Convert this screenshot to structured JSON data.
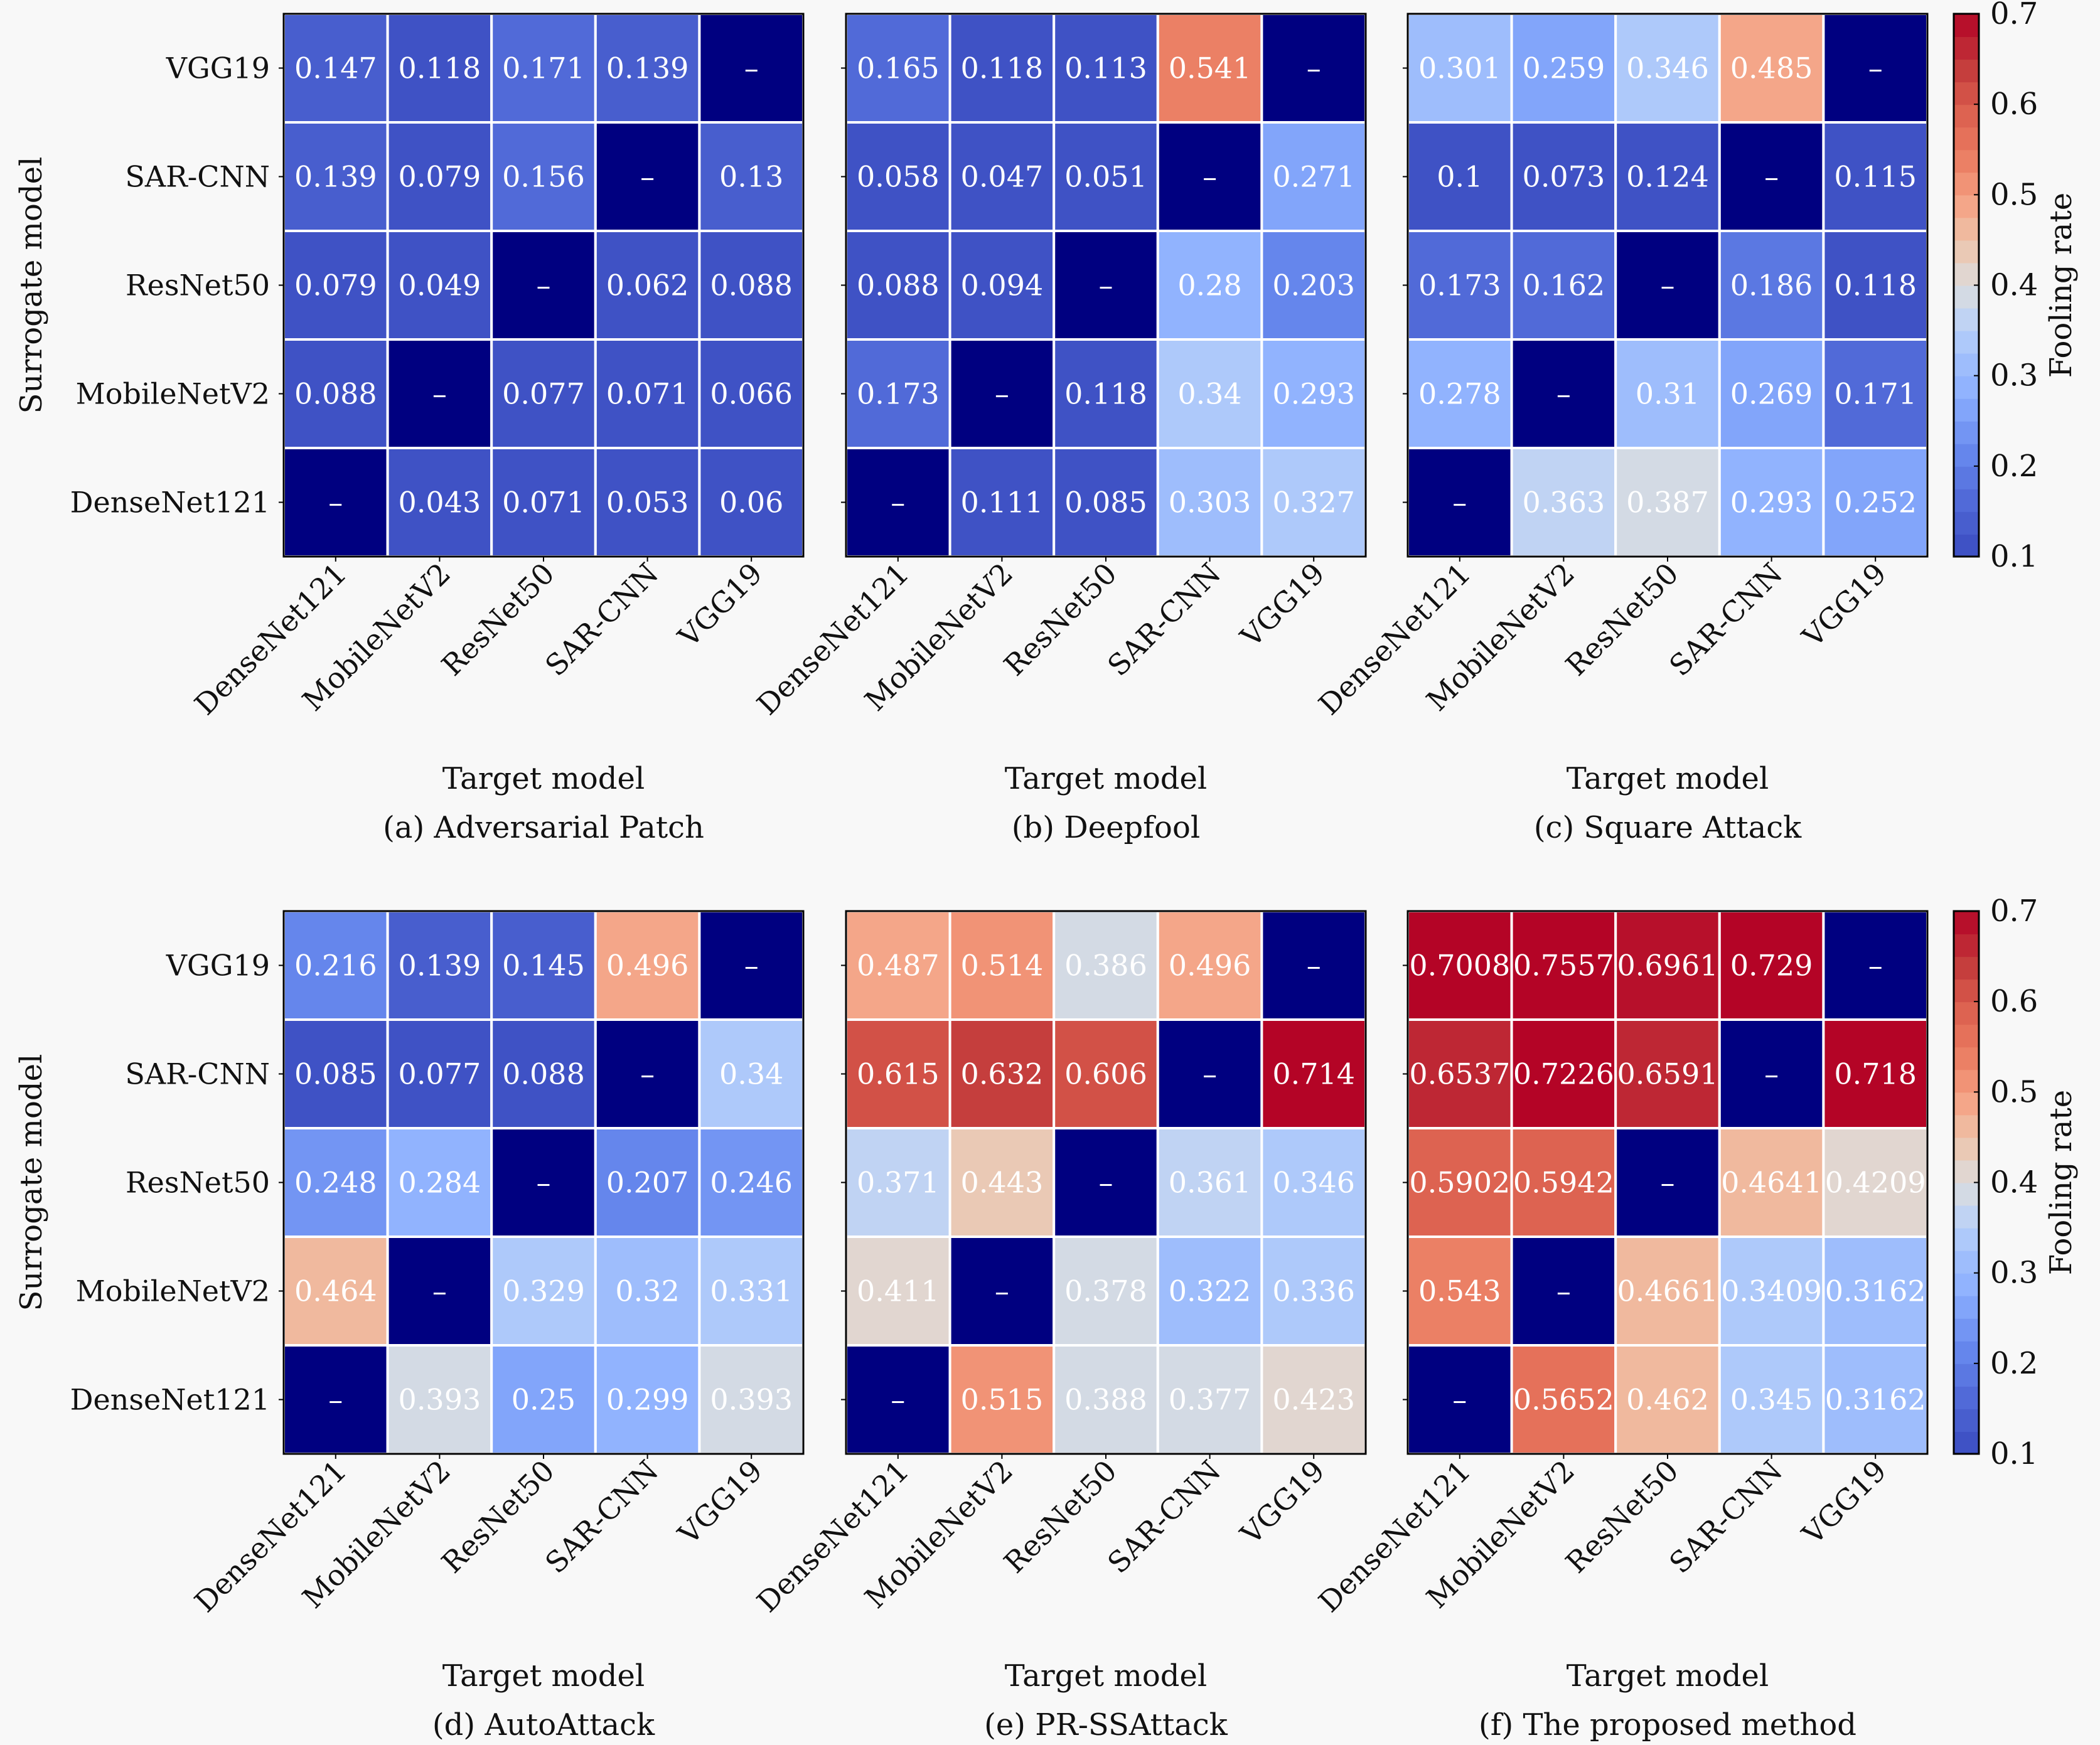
{
  "figure": {
    "missing_marker": "–",
    "colorbar_label": "Fooling rate",
    "colorbar_ticks": [
      "0.1",
      "0.2",
      "0.3",
      "0.4",
      "0.5",
      "0.6",
      "0.7"
    ]
  },
  "chart_data": [
    {
      "type": "heatmap",
      "caption": "(a) Adversarial Patch",
      "xlabel": "Target model",
      "ylabel": "Surrogate model",
      "x_categories": [
        "DenseNet121",
        "MobileNetV2",
        "ResNet50",
        "SAR-CNN",
        "VGG19"
      ],
      "y_categories": [
        "VGG19",
        "SAR-CNN",
        "ResNet50",
        "MobileNetV2",
        "DenseNet121"
      ],
      "values": [
        [
          "0.147",
          "0.118",
          "0.171",
          "0.139",
          null
        ],
        [
          "0.139",
          "0.079",
          "0.156",
          null,
          "0.13"
        ],
        [
          "0.079",
          "0.049",
          null,
          "0.062",
          "0.088"
        ],
        [
          "0.088",
          null,
          "0.077",
          "0.071",
          "0.066"
        ],
        [
          null,
          "0.043",
          "0.071",
          "0.053",
          "0.06"
        ]
      ],
      "colorbar": {
        "label": "Fooling rate",
        "range": [
          0.1,
          0.7
        ],
        "cmap": "coolwarm"
      }
    },
    {
      "type": "heatmap",
      "caption": "(b) Deepfool",
      "xlabel": "Target model",
      "ylabel": "",
      "x_categories": [
        "DenseNet121",
        "MobileNetV2",
        "ResNet50",
        "SAR-CNN",
        "VGG19"
      ],
      "y_categories": [
        "VGG19",
        "SAR-CNN",
        "ResNet50",
        "MobileNetV2",
        "DenseNet121"
      ],
      "values": [
        [
          "0.165",
          "0.118",
          "0.113",
          "0.541",
          null
        ],
        [
          "0.058",
          "0.047",
          "0.051",
          null,
          "0.271"
        ],
        [
          "0.088",
          "0.094",
          null,
          "0.28",
          "0.203"
        ],
        [
          "0.173",
          null,
          "0.118",
          "0.34",
          "0.293"
        ],
        [
          null,
          "0.111",
          "0.085",
          "0.303",
          "0.327"
        ]
      ],
      "colorbar": {
        "label": "Fooling rate",
        "range": [
          0.1,
          0.7
        ],
        "cmap": "coolwarm"
      }
    },
    {
      "type": "heatmap",
      "caption": "(c) Square Attack",
      "xlabel": "Target model",
      "ylabel": "",
      "x_categories": [
        "DenseNet121",
        "MobileNetV2",
        "ResNet50",
        "SAR-CNN",
        "VGG19"
      ],
      "y_categories": [
        "VGG19",
        "SAR-CNN",
        "ResNet50",
        "MobileNetV2",
        "DenseNet121"
      ],
      "values": [
        [
          "0.301",
          "0.259",
          "0.346",
          "0.485",
          null
        ],
        [
          "0.1",
          "0.073",
          "0.124",
          null,
          "0.115"
        ],
        [
          "0.173",
          "0.162",
          null,
          "0.186",
          "0.118"
        ],
        [
          "0.278",
          null,
          "0.31",
          "0.269",
          "0.171"
        ],
        [
          null,
          "0.363",
          "0.387",
          "0.293",
          "0.252"
        ]
      ],
      "colorbar": {
        "label": "Fooling rate",
        "range": [
          0.1,
          0.7
        ],
        "cmap": "coolwarm"
      }
    },
    {
      "type": "heatmap",
      "caption": "(d) AutoAttack",
      "xlabel": "Target model",
      "ylabel": "Surrogate model",
      "x_categories": [
        "DenseNet121",
        "MobileNetV2",
        "ResNet50",
        "SAR-CNN",
        "VGG19"
      ],
      "y_categories": [
        "VGG19",
        "SAR-CNN",
        "ResNet50",
        "MobileNetV2",
        "DenseNet121"
      ],
      "values": [
        [
          "0.216",
          "0.139",
          "0.145",
          "0.496",
          null
        ],
        [
          "0.085",
          "0.077",
          "0.088",
          null,
          "0.34"
        ],
        [
          "0.248",
          "0.284",
          null,
          "0.207",
          "0.246"
        ],
        [
          "0.464",
          null,
          "0.329",
          "0.32",
          "0.331"
        ],
        [
          null,
          "0.393",
          "0.25",
          "0.299",
          "0.393"
        ]
      ],
      "colorbar": {
        "label": "Fooling rate",
        "range": [
          0.1,
          0.7
        ],
        "cmap": "coolwarm"
      }
    },
    {
      "type": "heatmap",
      "caption": "(e) PR-SSAttack",
      "xlabel": "Target model",
      "ylabel": "",
      "x_categories": [
        "DenseNet121",
        "MobileNetV2",
        "ResNet50",
        "SAR-CNN",
        "VGG19"
      ],
      "y_categories": [
        "VGG19",
        "SAR-CNN",
        "ResNet50",
        "MobileNetV2",
        "DenseNet121"
      ],
      "values": [
        [
          "0.487",
          "0.514",
          "0.386",
          "0.496",
          null
        ],
        [
          "0.615",
          "0.632",
          "0.606",
          null,
          "0.714"
        ],
        [
          "0.371",
          "0.443",
          null,
          "0.361",
          "0.346"
        ],
        [
          "0.411",
          null,
          "0.378",
          "0.322",
          "0.336"
        ],
        [
          null,
          "0.515",
          "0.388",
          "0.377",
          "0.423"
        ]
      ],
      "colorbar": {
        "label": "Fooling rate",
        "range": [
          0.1,
          0.7
        ],
        "cmap": "coolwarm"
      }
    },
    {
      "type": "heatmap",
      "caption": "(f) The proposed method",
      "xlabel": "Target model",
      "ylabel": "",
      "x_categories": [
        "DenseNet121",
        "MobileNetV2",
        "ResNet50",
        "SAR-CNN",
        "VGG19"
      ],
      "y_categories": [
        "VGG19",
        "SAR-CNN",
        "ResNet50",
        "MobileNetV2",
        "DenseNet121"
      ],
      "values": [
        [
          "0.7008",
          "0.7557",
          "0.6961",
          "0.729",
          null
        ],
        [
          "0.6537",
          "0.7226",
          "0.6591",
          null,
          "0.718"
        ],
        [
          "0.5902",
          "0.5942",
          null,
          "0.4641",
          "0.4209"
        ],
        [
          "0.543",
          null,
          "0.4661",
          "0.3409",
          "0.3162"
        ],
        [
          null,
          "0.5652",
          "0.462",
          "0.345",
          "0.3162"
        ]
      ],
      "colorbar": {
        "label": "Fooling rate",
        "range": [
          0.1,
          0.7
        ],
        "cmap": "coolwarm"
      }
    }
  ]
}
